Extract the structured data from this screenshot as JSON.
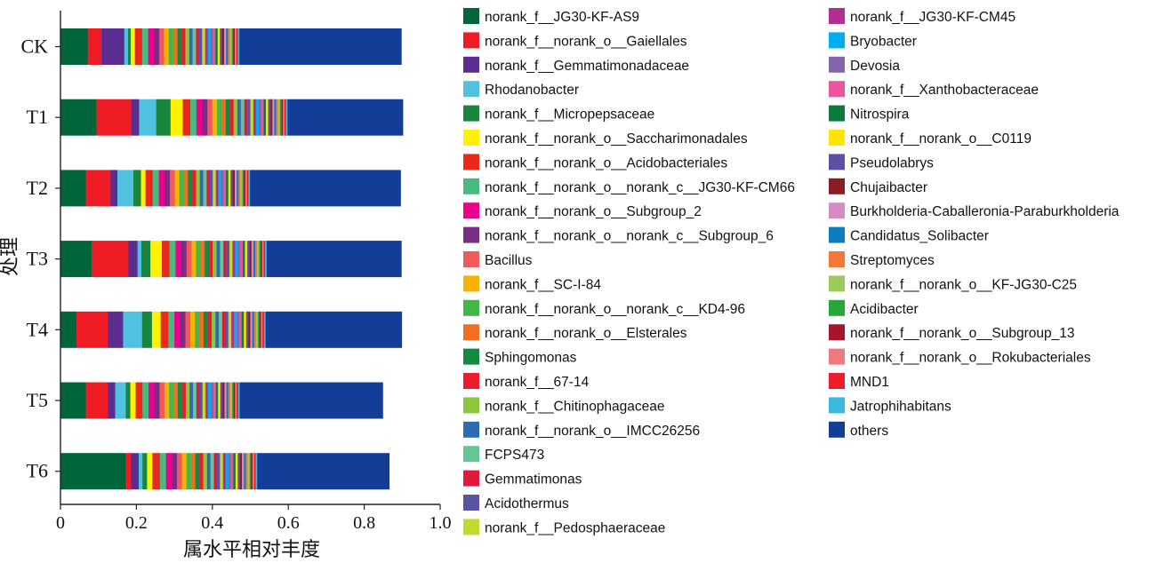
{
  "chart_data": {
    "type": "bar",
    "orientation": "horizontal",
    "stacked": true,
    "ylabel": "处理",
    "xlabel": "属水平相对丰度",
    "xlim": [
      0,
      1.0
    ],
    "x_ticks": [
      "0",
      "0.2",
      "0.4",
      "0.6",
      "0.8",
      "1.0"
    ],
    "categories": [
      "CK",
      "T1",
      "T2",
      "T3",
      "T4",
      "T5",
      "T6"
    ],
    "series": [
      {
        "name": "norank_f__JG30-KF-AS9",
        "color": "#00653a",
        "values": [
          0.072,
          0.095,
          0.067,
          0.082,
          0.042,
          0.067,
          0.172
        ]
      },
      {
        "name": "norank_f__norank_o__Gaiellales",
        "color": "#ef1c25",
        "values": [
          0.036,
          0.092,
          0.065,
          0.097,
          0.083,
          0.058,
          0.014
        ]
      },
      {
        "name": "norank_f__Gemmatimonadaceae",
        "color": "#5b2d90",
        "values": [
          0.06,
          0.02,
          0.018,
          0.024,
          0.04,
          0.019,
          0.02
        ]
      },
      {
        "name": "Rhodanobacter",
        "color": "#50c2e0",
        "values": [
          0.01,
          0.045,
          0.042,
          0.01,
          0.05,
          0.028,
          0.01
        ]
      },
      {
        "name": "norank_f__Micropepsaceae",
        "color": "#19853d",
        "values": [
          0.007,
          0.038,
          0.02,
          0.024,
          0.026,
          0.012,
          0.012
        ]
      },
      {
        "name": "norank_f__norank_o__Saccharimonadales",
        "color": "#fff200",
        "values": [
          0.011,
          0.032,
          0.012,
          0.03,
          0.023,
          0.014,
          0.014
        ]
      },
      {
        "name": "norank_f__norank_o__Acidobacteriales",
        "color": "#e8291c",
        "values": [
          0.019,
          0.02,
          0.019,
          0.02,
          0.02,
          0.018,
          0.02
        ]
      },
      {
        "name": "norank_f__norank_o__norank_c__JG30-KF-CM66",
        "color": "#4ab982",
        "values": [
          0.016,
          0.016,
          0.016,
          0.016,
          0.016,
          0.016,
          0.016
        ]
      },
      {
        "name": "norank_f__norank_o__Subgroup_2",
        "color": "#ec008c",
        "values": [
          0.015,
          0.015,
          0.015,
          0.015,
          0.015,
          0.015,
          0.015
        ]
      },
      {
        "name": "norank_f__norank_o__norank_c__Subgroup_6",
        "color": "#7b2c85",
        "values": [
          0.014,
          0.014,
          0.014,
          0.014,
          0.014,
          0.014,
          0.014
        ]
      },
      {
        "name": "Bacillus",
        "color": "#ef5a5a",
        "values": [
          0.013,
          0.013,
          0.013,
          0.013,
          0.013,
          0.013,
          0.013
        ]
      },
      {
        "name": "norank_f__SC-I-84",
        "color": "#f7b100",
        "values": [
          0.012,
          0.012,
          0.012,
          0.012,
          0.012,
          0.012,
          0.012
        ]
      },
      {
        "name": "norank_f__norank_o__norank_c__KD4-96",
        "color": "#45b649",
        "values": [
          0.012,
          0.012,
          0.012,
          0.012,
          0.012,
          0.012,
          0.012
        ]
      },
      {
        "name": "norank_f__norank_o__Elsterales",
        "color": "#f26f21",
        "values": [
          0.011,
          0.011,
          0.011,
          0.011,
          0.011,
          0.011,
          0.011
        ]
      },
      {
        "name": "Sphingomonas",
        "color": "#128a44",
        "values": [
          0.011,
          0.011,
          0.011,
          0.011,
          0.011,
          0.011,
          0.011
        ]
      },
      {
        "name": "norank_f__67-14",
        "color": "#ea1c2d",
        "values": [
          0.01,
          0.01,
          0.01,
          0.01,
          0.01,
          0.01,
          0.01
        ]
      },
      {
        "name": "norank_f__Chitinophagaceae",
        "color": "#8cc63f",
        "values": [
          0.01,
          0.01,
          0.01,
          0.01,
          0.01,
          0.01,
          0.01
        ]
      },
      {
        "name": "norank_f__norank_o__IMCC26256",
        "color": "#2b6cb5",
        "values": [
          0.009,
          0.009,
          0.009,
          0.009,
          0.009,
          0.009,
          0.009
        ]
      },
      {
        "name": "FCPS473",
        "color": "#66c497",
        "values": [
          0.009,
          0.009,
          0.009,
          0.009,
          0.009,
          0.009,
          0.009
        ]
      },
      {
        "name": "Gemmatimonas",
        "color": "#e2193d",
        "values": [
          0.008,
          0.008,
          0.008,
          0.008,
          0.008,
          0.008,
          0.008
        ]
      },
      {
        "name": "Acidothermus",
        "color": "#5a53a4",
        "values": [
          0.008,
          0.008,
          0.008,
          0.008,
          0.008,
          0.008,
          0.008
        ]
      },
      {
        "name": "norank_f__Pedosphaeraceae",
        "color": "#c3d92f",
        "values": [
          0.008,
          0.008,
          0.008,
          0.008,
          0.008,
          0.008,
          0.008
        ]
      },
      {
        "name": "norank_f__JG30-KF-CM45",
        "color": "#b0308f",
        "values": [
          0.007,
          0.007,
          0.007,
          0.007,
          0.007,
          0.007,
          0.007
        ]
      },
      {
        "name": "Bryobacter",
        "color": "#00aeef",
        "values": [
          0.007,
          0.007,
          0.007,
          0.007,
          0.007,
          0.007,
          0.007
        ]
      },
      {
        "name": "Devosia",
        "color": "#8466b0",
        "values": [
          0.007,
          0.007,
          0.007,
          0.007,
          0.007,
          0.007,
          0.007
        ]
      },
      {
        "name": "norank_f__Xanthobacteraceae",
        "color": "#e9569f",
        "values": [
          0.006,
          0.006,
          0.006,
          0.006,
          0.006,
          0.006,
          0.006
        ]
      },
      {
        "name": "Nitrospira",
        "color": "#0b7c3e",
        "values": [
          0.006,
          0.006,
          0.006,
          0.006,
          0.006,
          0.006,
          0.006
        ]
      },
      {
        "name": "norank_f__norank_o__C0119",
        "color": "#ffe400",
        "values": [
          0.006,
          0.006,
          0.006,
          0.006,
          0.006,
          0.006,
          0.006
        ]
      },
      {
        "name": "Pseudolabrys",
        "color": "#5e4fa2",
        "values": [
          0.006,
          0.006,
          0.006,
          0.006,
          0.006,
          0.006,
          0.006
        ]
      },
      {
        "name": "Chujaibacter",
        "color": "#8a1c27",
        "values": [
          0.005,
          0.005,
          0.005,
          0.005,
          0.005,
          0.005,
          0.005
        ]
      },
      {
        "name": "Burkholderia-Caballeronia-Paraburkholderia",
        "color": "#d58bc4",
        "values": [
          0.005,
          0.005,
          0.005,
          0.005,
          0.005,
          0.005,
          0.005
        ]
      },
      {
        "name": "Candidatus_Solibacter",
        "color": "#0f7cc2",
        "values": [
          0.005,
          0.005,
          0.005,
          0.005,
          0.005,
          0.005,
          0.005
        ]
      },
      {
        "name": "Streptomyces",
        "color": "#f37738",
        "values": [
          0.005,
          0.005,
          0.005,
          0.005,
          0.005,
          0.005,
          0.005
        ]
      },
      {
        "name": "norank_f__norank_o__KF-JG30-C25",
        "color": "#9ccb5b",
        "values": [
          0.005,
          0.005,
          0.005,
          0.005,
          0.005,
          0.005,
          0.005
        ]
      },
      {
        "name": "Acidibacter",
        "color": "#27a737",
        "values": [
          0.004,
          0.004,
          0.004,
          0.004,
          0.004,
          0.004,
          0.004
        ]
      },
      {
        "name": "norank_f__norank_o__Subgroup_13",
        "color": "#a3162b",
        "values": [
          0.004,
          0.004,
          0.004,
          0.004,
          0.004,
          0.004,
          0.004
        ]
      },
      {
        "name": "norank_f__norank_o__Rokubacteriales",
        "color": "#ee7a80",
        "values": [
          0.004,
          0.004,
          0.004,
          0.004,
          0.004,
          0.004,
          0.004
        ]
      },
      {
        "name": "MND1",
        "color": "#ec1c2c",
        "values": [
          0.004,
          0.004,
          0.004,
          0.004,
          0.004,
          0.004,
          0.004
        ]
      },
      {
        "name": "Jatrophihabitans",
        "color": "#3ab8dd",
        "values": [
          0.004,
          0.004,
          0.004,
          0.004,
          0.004,
          0.004,
          0.004
        ]
      },
      {
        "name": "others",
        "color": "#143d98",
        "values": [
          0.427,
          0.304,
          0.397,
          0.355,
          0.359,
          0.377,
          0.348
        ]
      }
    ],
    "legend_position": "right",
    "grid": false
  }
}
